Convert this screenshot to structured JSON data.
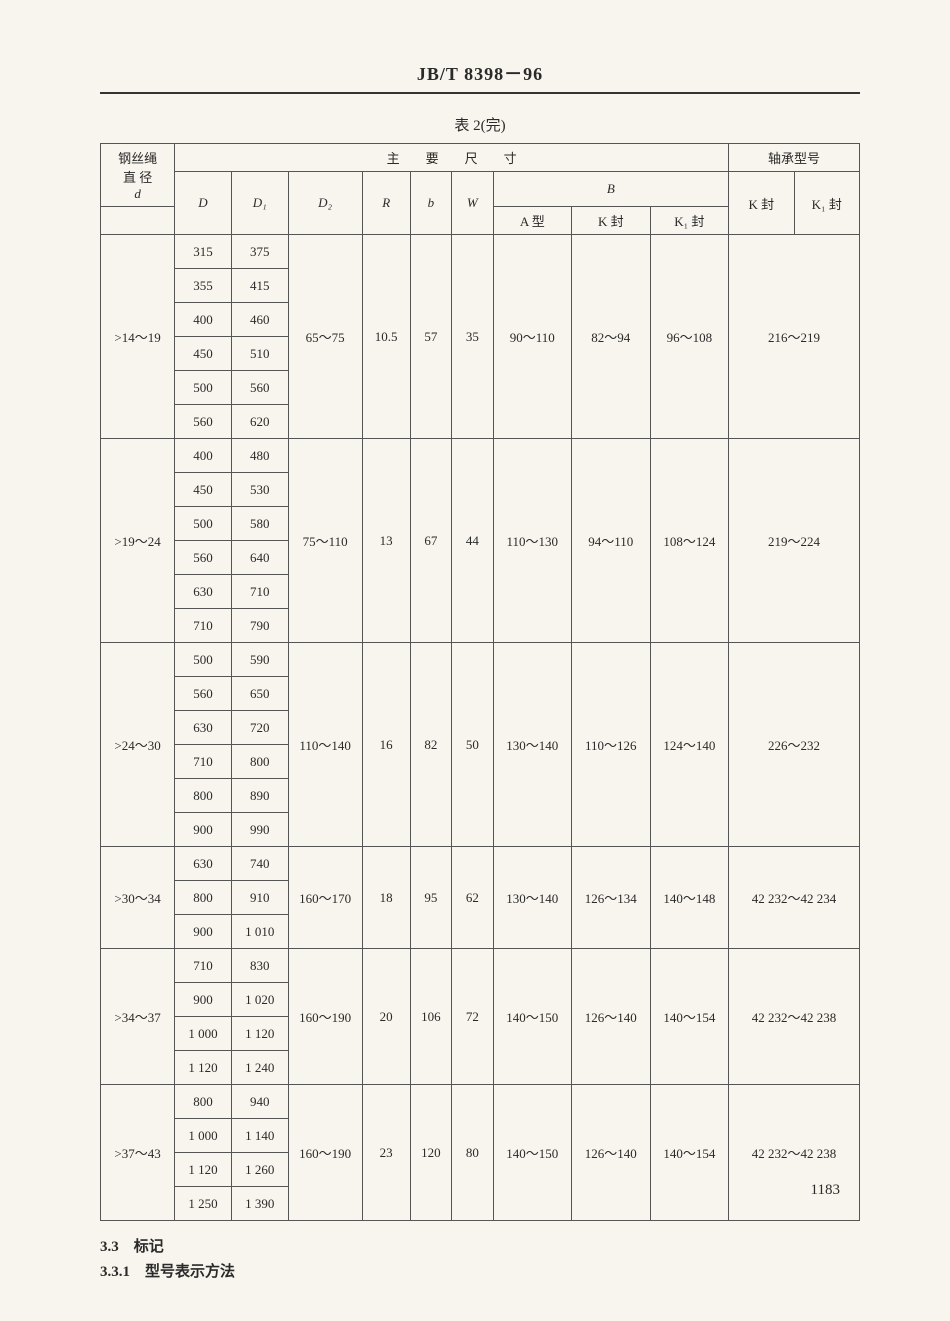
{
  "header": {
    "standard": "JB/T 8398－96"
  },
  "caption": "表 2(完)",
  "thead": {
    "rope": "钢丝绳",
    "diam": "直 径",
    "d": "d",
    "main": "主　　要　　尺　　寸",
    "bearing": "轴承型号",
    "D": "D",
    "D1": "D₁",
    "D2": "D₂",
    "R": "R",
    "b": "b",
    "W": "W",
    "B": "B",
    "BA": "A 型",
    "BK": "K 封",
    "BK1": "K₁ 封",
    "KF": "K 封",
    "K1F": "K₁ 封"
  },
  "groups": [
    {
      "d": ">14～19",
      "D": [
        "315",
        "355",
        "400",
        "450",
        "500",
        "560"
      ],
      "D1": [
        "375",
        "415",
        "460",
        "510",
        "560",
        "620"
      ],
      "D2": "65～75",
      "R": "10.5",
      "b": "57",
      "W": "35",
      "BA": "90～110",
      "BK": "82～94",
      "BK1": "96～108",
      "bearing": "216～219"
    },
    {
      "d": ">19～24",
      "D": [
        "400",
        "450",
        "500",
        "560",
        "630",
        "710"
      ],
      "D1": [
        "480",
        "530",
        "580",
        "640",
        "710",
        "790"
      ],
      "D2": "75～110",
      "R": "13",
      "b": "67",
      "W": "44",
      "BA": "110～130",
      "BK": "94～110",
      "BK1": "108～124",
      "bearing": "219～224"
    },
    {
      "d": ">24～30",
      "D": [
        "500",
        "560",
        "630",
        "710",
        "800",
        "900"
      ],
      "D1": [
        "590",
        "650",
        "720",
        "800",
        "890",
        "990"
      ],
      "D2": "110～140",
      "R": "16",
      "b": "82",
      "W": "50",
      "BA": "130～140",
      "BK": "110～126",
      "BK1": "124～140",
      "bearing": "226～232"
    },
    {
      "d": ">30～34",
      "D": [
        "630",
        "800",
        "900"
      ],
      "D1": [
        "740",
        "910",
        "1 010"
      ],
      "D2": "160～170",
      "R": "18",
      "b": "95",
      "W": "62",
      "BA": "130～140",
      "BK": "126～134",
      "BK1": "140～148",
      "bearing": "42 232～42 234"
    },
    {
      "d": ">34～37",
      "D": [
        "710",
        "900",
        "1 000",
        "1 120"
      ],
      "D1": [
        "830",
        "1 020",
        "1 120",
        "1 240"
      ],
      "D2": "160～190",
      "R": "20",
      "b": "106",
      "W": "72",
      "BA": "140～150",
      "BK": "126～140",
      "BK1": "140～154",
      "bearing": "42 232～42 238"
    },
    {
      "d": ">37～43",
      "D": [
        "800",
        "1 000",
        "1 120",
        "1 250"
      ],
      "D1": [
        "940",
        "1 140",
        "1 260",
        "1 390"
      ],
      "D2": "160～190",
      "R": "23",
      "b": "120",
      "W": "80",
      "BA": "140～150",
      "BK": "126～140",
      "BK1": "140～154",
      "bearing": "42 232～42 238"
    }
  ],
  "sections": {
    "s33": "3.3　标记",
    "s331": "3.3.1　型号表示方法"
  },
  "pageNum": "1183"
}
